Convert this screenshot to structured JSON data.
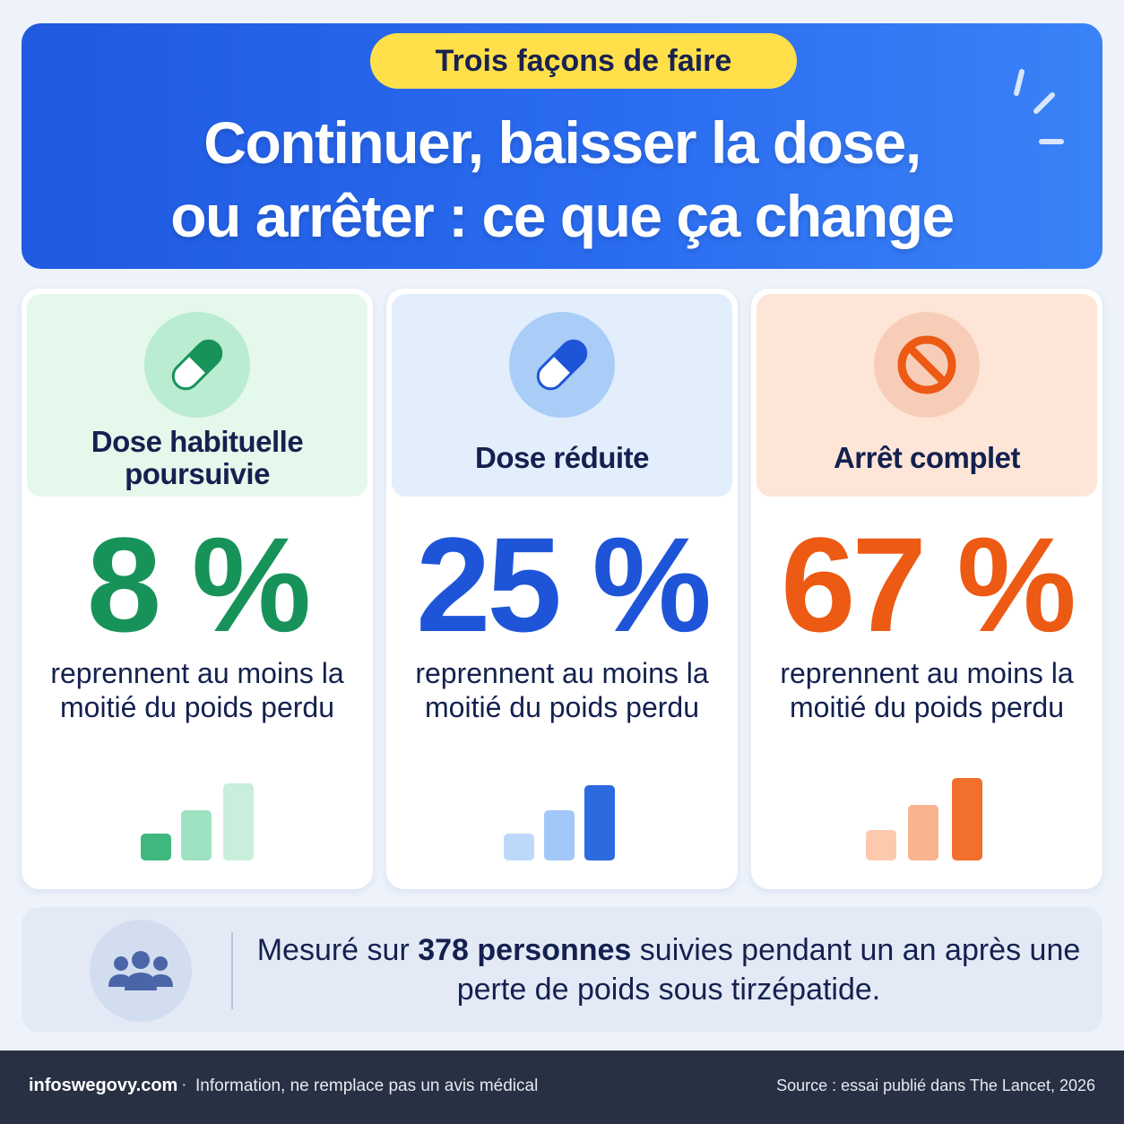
{
  "header": {
    "tag": "Trois façons de faire",
    "title_line1": "Continuer, baisser la dose,",
    "title_line2": "ou arrêter : ce que ça change",
    "background_color": "#2a6cf0",
    "tag_color": "#ffe04a"
  },
  "cards": [
    {
      "title": "Dose habituelle poursuivie",
      "percent": "8 %",
      "description": "reprennent au moins la moitié du poids perdu",
      "icon": "pill-icon",
      "color": "#17935a",
      "head_color": "#e5f8ec"
    },
    {
      "title": "Dose réduite",
      "percent": "25 %",
      "description": "reprennent au moins la moitié du poids perdu",
      "icon": "pill-icon",
      "color": "#1e55d8",
      "head_color": "#e2eefc"
    },
    {
      "title": "Arrêt complet",
      "percent": "67 %",
      "description": "reprennent au moins la moitié du poids perdu",
      "icon": "prohibited-icon",
      "color": "#ec5a14",
      "head_color": "#fde6d8"
    }
  ],
  "footer": {
    "text_before": "Mesuré sur ",
    "text_bold": "378 personnes",
    "text_after": " suivies pendant un an après une perte de poids sous tirzépatide.",
    "icon": "people-icon"
  },
  "bottom_bar": {
    "site": "infoswegovy.com",
    "separator": "·",
    "disclaimer": "Information, ne remplace pas un avis médical",
    "source": "Source : essai publié dans The Lancet, 2026"
  }
}
